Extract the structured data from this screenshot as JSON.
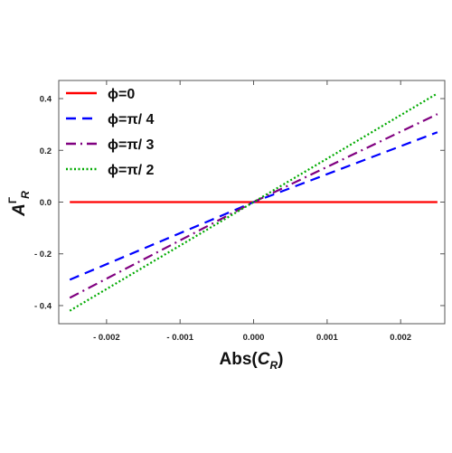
{
  "chart_data": {
    "type": "line",
    "xlabel": "Abs(C_R)",
    "xlabel_parts": {
      "main": "Abs(",
      "var": "C",
      "sub": "R",
      "close": ")"
    },
    "ylabel_parts": {
      "main": "A",
      "sup": "Γ",
      "sub": "R"
    },
    "xlim": [
      -0.00265,
      0.0026
    ],
    "ylim": [
      -0.47,
      0.47
    ],
    "x_ticks": [
      -0.002,
      -0.001,
      0.0,
      0.001,
      0.002
    ],
    "x_tick_labels": [
      "- 0.002",
      "- 0.001",
      "0.000",
      "0.001",
      "0.002"
    ],
    "y_ticks": [
      -0.4,
      -0.2,
      0.0,
      0.2,
      0.4
    ],
    "y_tick_labels": [
      "- 0.4",
      "- 0.2",
      "0.0",
      "0.2",
      "0.4"
    ],
    "grid": false,
    "legend_position": "top-left",
    "series": [
      {
        "name": "ϕ=0",
        "color": "#ff0000",
        "dash": "solid",
        "x": [
          -0.0025,
          0.0025
        ],
        "y": [
          0.0,
          0.0
        ]
      },
      {
        "name": "ϕ=π/ 4",
        "color": "#0000ff",
        "dash": "dashed",
        "x": [
          -0.0025,
          0.0,
          0.0025
        ],
        "y": [
          -0.3,
          0.0,
          0.27
        ]
      },
      {
        "name": "ϕ=π/ 3",
        "color": "#800080",
        "dash": "dashdot",
        "x": [
          -0.0025,
          0.0,
          0.0025
        ],
        "y": [
          -0.37,
          0.0,
          0.34
        ]
      },
      {
        "name": "ϕ=π/ 2",
        "color": "#00aa00",
        "dash": "dotted",
        "x": [
          -0.0025,
          0.0,
          0.0025
        ],
        "y": [
          -0.42,
          0.0,
          0.42
        ]
      }
    ]
  }
}
